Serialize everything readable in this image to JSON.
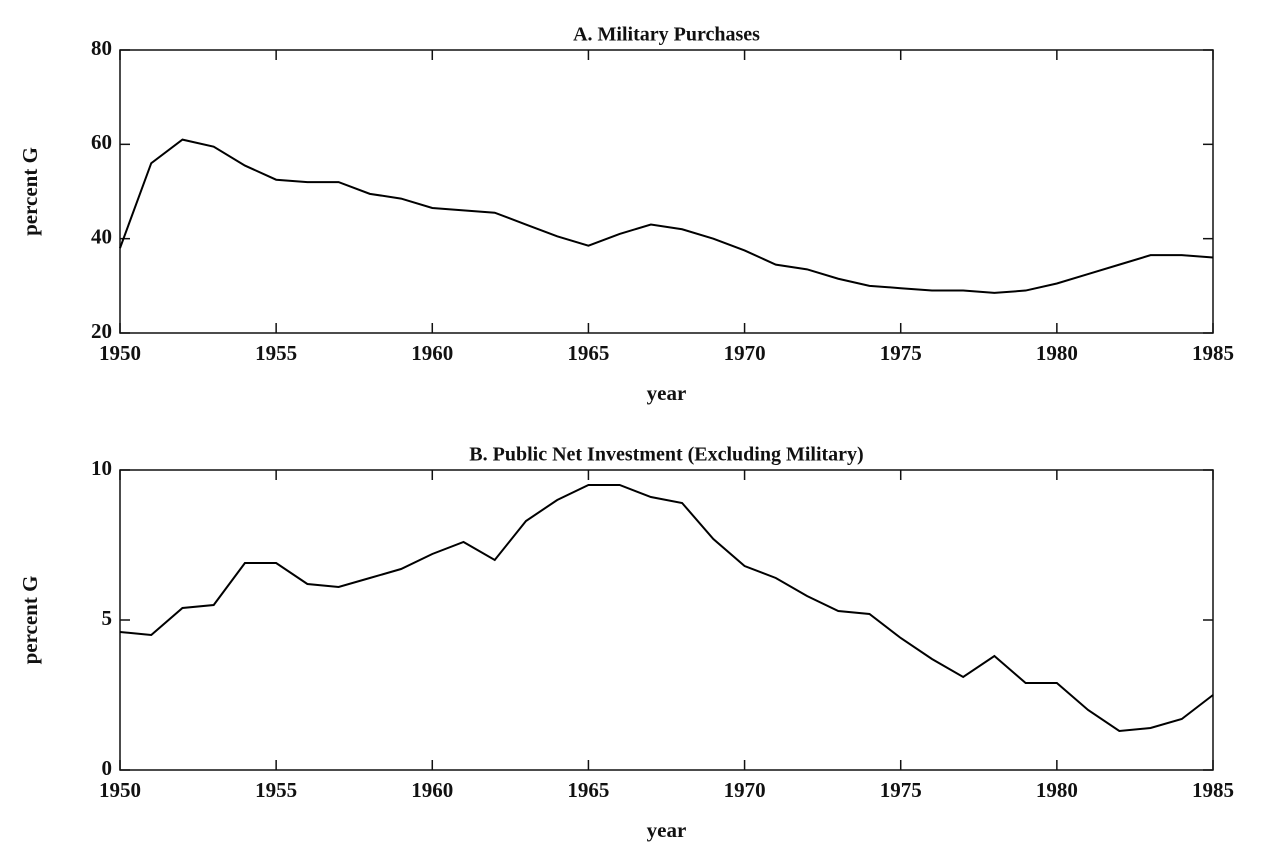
{
  "chart_data": [
    {
      "type": "line",
      "title": "A. Military Purchases",
      "xlabel": "year",
      "ylabel": "percent G",
      "x": [
        1950,
        1951,
        1952,
        1953,
        1954,
        1955,
        1956,
        1957,
        1958,
        1959,
        1960,
        1961,
        1962,
        1963,
        1964,
        1965,
        1966,
        1967,
        1968,
        1969,
        1970,
        1971,
        1972,
        1973,
        1974,
        1975,
        1976,
        1977,
        1978,
        1979,
        1980,
        1981,
        1982,
        1983,
        1984,
        1985
      ],
      "series": [
        {
          "color": "#000000",
          "values": [
            38,
            56,
            61,
            59.5,
            55.5,
            52.5,
            52,
            52,
            49.5,
            48.5,
            46.5,
            46,
            45.5,
            43,
            40.5,
            38.5,
            41,
            43,
            42,
            40,
            37.5,
            34.5,
            33.5,
            31.5,
            30,
            29.5,
            29,
            29,
            28.5,
            29,
            30.5,
            32.5,
            34.5,
            36.5,
            36.5,
            36
          ]
        }
      ],
      "xlim": [
        1950,
        1985
      ],
      "xticks": [
        1950,
        1955,
        1960,
        1965,
        1970,
        1975,
        1980,
        1985
      ],
      "ylim": [
        20,
        80
      ],
      "yticks": [
        20,
        40,
        60,
        80
      ]
    },
    {
      "type": "line",
      "title": "B. Public Net Investment (Excluding Military)",
      "xlabel": "year",
      "ylabel": "percent G",
      "x": [
        1950,
        1951,
        1952,
        1953,
        1954,
        1955,
        1956,
        1957,
        1958,
        1959,
        1960,
        1961,
        1962,
        1963,
        1964,
        1965,
        1966,
        1967,
        1968,
        1969,
        1970,
        1971,
        1972,
        1973,
        1974,
        1975,
        1976,
        1977,
        1978,
        1979,
        1980,
        1981,
        1982,
        1983,
        1984,
        1985
      ],
      "series": [
        {
          "color": "#000000",
          "values": [
            4.6,
            4.5,
            5.4,
            5.5,
            6.9,
            6.9,
            6.2,
            6.1,
            6.4,
            6.7,
            7.2,
            7.6,
            7.0,
            8.3,
            9.0,
            9.5,
            9.5,
            9.1,
            8.9,
            7.7,
            6.8,
            6.4,
            5.8,
            5.3,
            5.2,
            4.4,
            3.7,
            3.1,
            3.8,
            2.9,
            2.9,
            2.0,
            1.3,
            1.4,
            1.7,
            2.5
          ]
        }
      ],
      "xlim": [
        1950,
        1985
      ],
      "xticks": [
        1950,
        1955,
        1960,
        1965,
        1970,
        1975,
        1980,
        1985
      ],
      "ylim": [
        0,
        10
      ],
      "yticks": [
        0,
        5,
        10
      ]
    }
  ]
}
